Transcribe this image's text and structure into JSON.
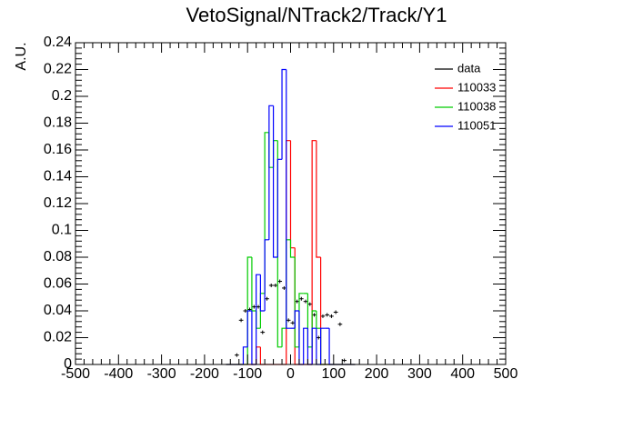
{
  "chart_data": {
    "type": "histogram",
    "title": "VetoSignal/NTrack2/Track/Y1",
    "y_label": "A.U.",
    "bins": [
      -150,
      -140,
      -130,
      -120,
      -110,
      -100,
      -90,
      -80,
      -70,
      -60,
      -50,
      -40,
      -30,
      -20,
      -10,
      0,
      10,
      20,
      30,
      40,
      50,
      60,
      70,
      80,
      90,
      100,
      110,
      120,
      130,
      140,
      150
    ],
    "series": [
      {
        "name": "data",
        "color": "#000000",
        "style": "points",
        "values": [
          null,
          null,
          0.007,
          0.033,
          0.04,
          0.041,
          0.043,
          0.043,
          0.024,
          0.049,
          0.059,
          0.059,
          0.062,
          0.057,
          0.033,
          0.031,
          0.047,
          0.049,
          0.047,
          0.045,
          0.037,
          0.02,
          0.036,
          0.037,
          0.036,
          0.039,
          0.03,
          0.003,
          null,
          null
        ]
      },
      {
        "name": "110033",
        "color": "#ff0000",
        "style": "step",
        "values": [
          0,
          0,
          0,
          0,
          0,
          0,
          0,
          0.013,
          0,
          0,
          0,
          0,
          0,
          0,
          0.167,
          0.087,
          0,
          0,
          0,
          0,
          0.167,
          0.08,
          0,
          0,
          0,
          0,
          0,
          0,
          0,
          0
        ]
      },
      {
        "name": "110038",
        "color": "#00cc00",
        "style": "step",
        "values": [
          0,
          0,
          0,
          0,
          0,
          0.08,
          0.04,
          0.027,
          0.053,
          0.173,
          0.147,
          0.167,
          0.013,
          0.027,
          0.093,
          0.08,
          0.013,
          0.053,
          0.053,
          0.013,
          0.04,
          0.027,
          0,
          0,
          0,
          0,
          0,
          0,
          0,
          0
        ]
      },
      {
        "name": "110051",
        "color": "#0000ff",
        "style": "step",
        "values": [
          0,
          0,
          0,
          0,
          0.013,
          0.04,
          0,
          0.067,
          0.04,
          0.093,
          0.193,
          0.08,
          0.153,
          0.22,
          0.027,
          0.027,
          0.04,
          0,
          0.027,
          0,
          0.027,
          0,
          0.027,
          0.027,
          0,
          0,
          0,
          0,
          0,
          0
        ]
      }
    ],
    "xlim": [
      -500,
      500
    ],
    "xticks": [
      -500,
      -400,
      -300,
      -200,
      -100,
      0,
      100,
      200,
      300,
      400,
      500
    ],
    "ylim": [
      0,
      0.24
    ],
    "yticks": [
      0,
      0.02,
      0.04,
      0.06,
      0.08,
      0.1,
      0.12,
      0.14,
      0.16,
      0.18,
      0.2,
      0.22,
      0.24
    ],
    "legend": "top-right"
  }
}
